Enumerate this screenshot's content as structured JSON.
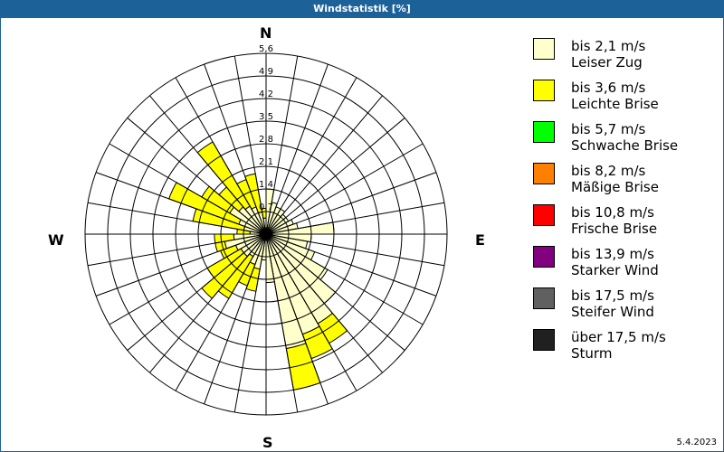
{
  "title": "Windstatistik [%]",
  "date": "5.4.2023",
  "compass": {
    "N": "N",
    "E": "E",
    "S": "S",
    "W": "W"
  },
  "chart_data": {
    "type": "polar-bar",
    "title": "Windstatistik [%]",
    "radial_ticks": [
      "0,7",
      "1,4",
      "2,1",
      "2,8",
      "3,5",
      "4,2",
      "4,9",
      "5,6"
    ],
    "radial_max": 5.6,
    "sector_width_deg": 10,
    "directions_deg": [
      0,
      10,
      20,
      30,
      40,
      50,
      60,
      70,
      80,
      90,
      100,
      110,
      120,
      130,
      140,
      150,
      160,
      170,
      180,
      190,
      200,
      210,
      220,
      230,
      240,
      250,
      260,
      270,
      280,
      290,
      300,
      310,
      320,
      330,
      340,
      350
    ],
    "series": [
      {
        "name": "bis 2,1 m/s Leiser Zug",
        "color": "#ffffcc",
        "values": [
          1.4,
          1.0,
          0.9,
          0.9,
          0.8,
          0.8,
          0.9,
          1.0,
          2.1,
          1.4,
          1.3,
          1.6,
          2.2,
          2.8,
          3.2,
          3.3,
          3.6,
          1.5,
          0.8,
          1.1,
          1.0,
          0.8,
          0.9,
          0.9,
          1.0,
          1.3,
          1.0,
          0.5,
          0.7,
          0.9,
          1.3,
          1.1,
          1.0,
          0.9,
          0.7,
          0.5
        ]
      },
      {
        "name": "bis 3,6 m/s Leichte Brise",
        "color": "#ffff00",
        "values": [
          0,
          0,
          0,
          0,
          0,
          0,
          0,
          0,
          0,
          0,
          0,
          0,
          0,
          0,
          0.7,
          0.8,
          1.3,
          0,
          0,
          0.7,
          0.7,
          1.5,
          1.7,
          1.2,
          0.5,
          0.3,
          0.6,
          0.4,
          1.6,
          2.3,
          1.0,
          0.8,
          2.3,
          0.9,
          1.2,
          0.3
        ]
      },
      {
        "name": "bis 5,7 m/s Schwache Brise",
        "color": "#00ff00",
        "values": []
      },
      {
        "name": "bis 8,2 m/s Mäßige Brise",
        "color": "#ff8000",
        "values": []
      },
      {
        "name": "bis 10,8 m/s Frische Brise",
        "color": "#ff0000",
        "values": []
      },
      {
        "name": "bis 13,9 m/s Starker Wind",
        "color": "#800080",
        "values": []
      },
      {
        "name": "bis 17,5 m/s Steifer Wind",
        "color": "#606060",
        "values": []
      },
      {
        "name": "über 17,5 m/s Sturm",
        "color": "#202020",
        "values": []
      }
    ]
  },
  "legend": [
    {
      "line1": "bis 2,1 m/s",
      "line2": "Leiser Zug",
      "color": "#ffffcc"
    },
    {
      "line1": "bis 3,6 m/s",
      "line2": "Leichte Brise",
      "color": "#ffff00"
    },
    {
      "line1": "bis 5,7 m/s",
      "line2": "Schwache Brise",
      "color": "#00ff00"
    },
    {
      "line1": "bis 8,2 m/s",
      "line2": "Mäßige Brise",
      "color": "#ff8000"
    },
    {
      "line1": "bis 10,8 m/s",
      "line2": "Frische Brise",
      "color": "#ff0000"
    },
    {
      "line1": "bis 13,9 m/s",
      "line2": "Starker Wind",
      "color": "#800080"
    },
    {
      "line1": "bis 17,5 m/s",
      "line2": "Steifer Wind",
      "color": "#606060"
    },
    {
      "line1": "über 17,5 m/s",
      "line2": "Sturm",
      "color": "#202020"
    }
  ]
}
